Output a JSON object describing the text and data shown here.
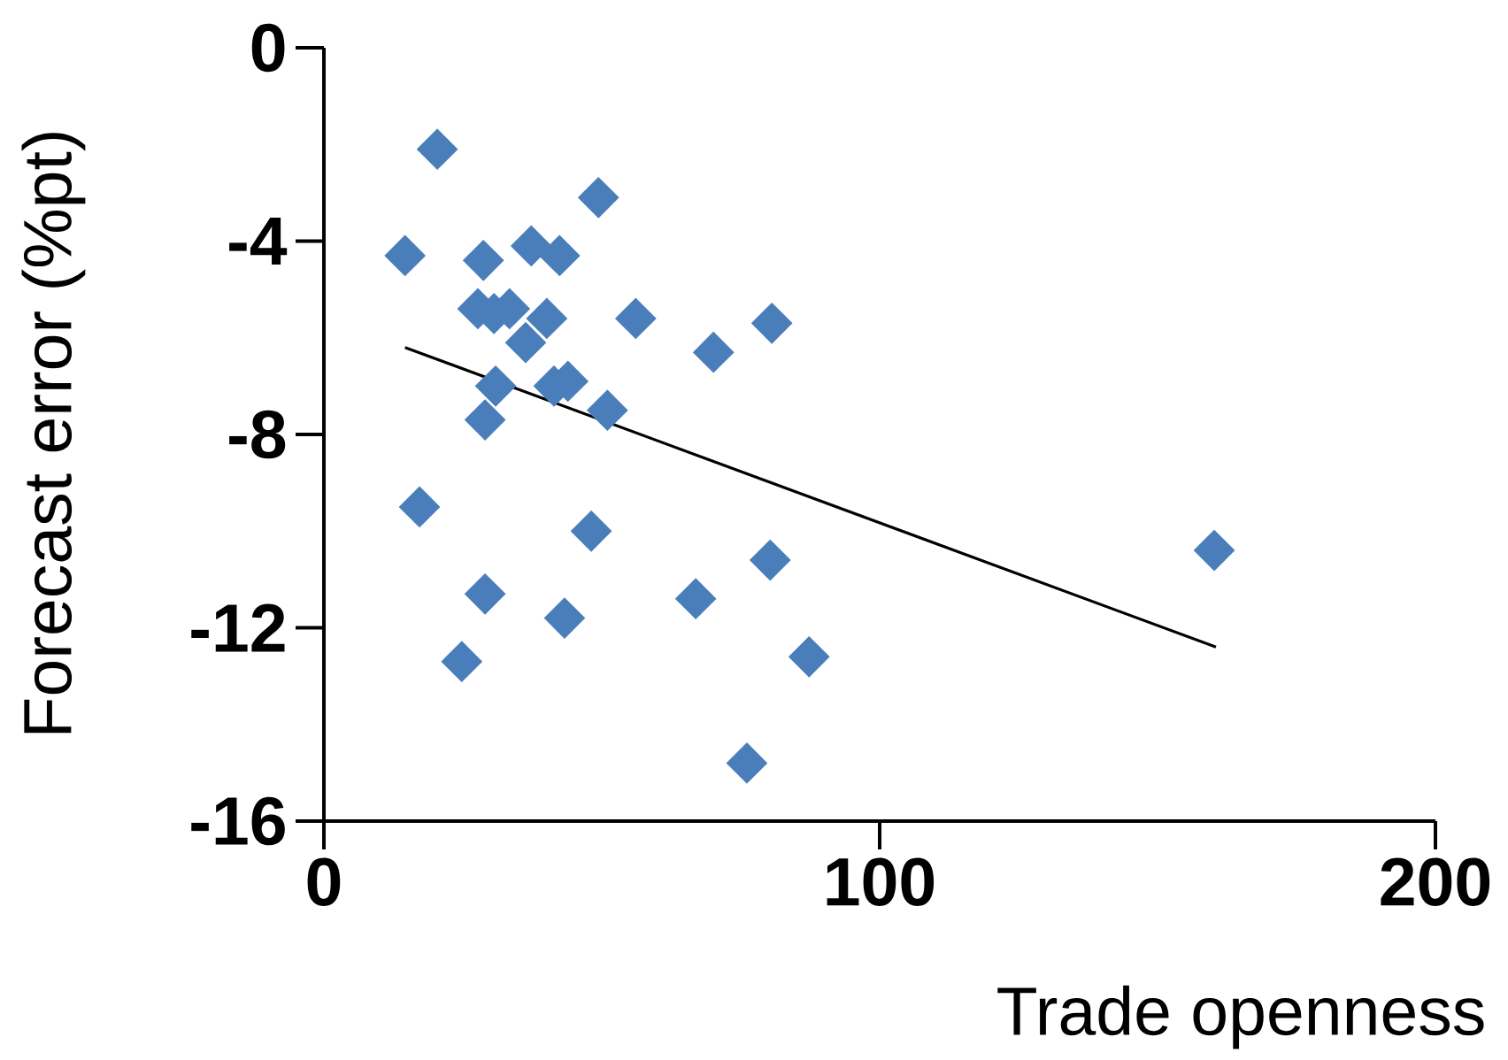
{
  "chart_data": {
    "type": "scatter",
    "xlabel": "Trade openness",
    "ylabel": "Forecast error (%pt)",
    "xlim": [
      0,
      200
    ],
    "ylim": [
      -16,
      0
    ],
    "xticks": [
      0,
      100,
      200
    ],
    "yticks": [
      0,
      -4,
      -8,
      -12,
      -16
    ],
    "marker": "diamond",
    "series": [
      {
        "color": "#4a7ebb",
        "x": [
          20.4,
          49.4,
          14.6,
          28.7,
          37.3,
          42.4,
          27.7,
          30.6,
          33.4,
          40.1,
          56.1,
          80.6,
          36.3,
          70.1,
          30.9,
          41.4,
          43.9,
          51.0,
          29.0,
          17.2,
          48.1,
          80.3,
          29.0,
          66.9,
          43.3,
          24.8,
          87.3,
          76.1,
          160.2
        ],
        "values": [
          -2.1,
          -3.1,
          -4.3,
          -4.4,
          -4.1,
          -4.3,
          -5.4,
          -5.5,
          -5.4,
          -5.6,
          -5.6,
          -5.7,
          -6.1,
          -6.3,
          -7.0,
          -7.0,
          -6.9,
          -7.5,
          -7.7,
          -9.5,
          -10.0,
          -10.6,
          -11.3,
          -11.4,
          -11.8,
          -12.7,
          -12.6,
          -14.8,
          -10.4
        ]
      },
      {
        "type": "line",
        "color": "#000000",
        "marker": "none",
        "x": [
          14.6,
          160.5
        ],
        "values": [
          -6.2,
          -12.4
        ]
      }
    ]
  }
}
